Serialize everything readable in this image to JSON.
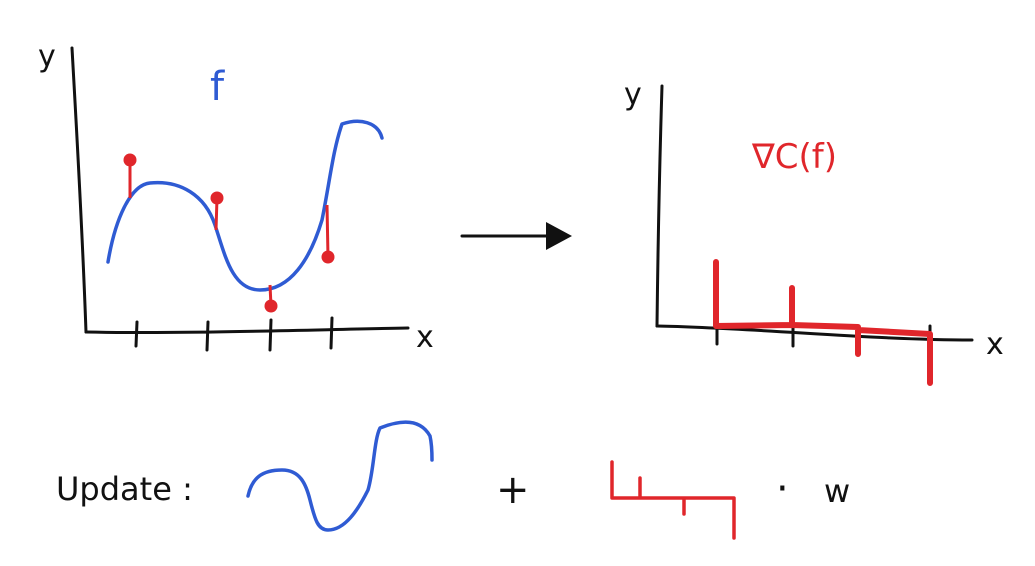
{
  "colors": {
    "ink": "#111111",
    "function": "#2f5bd3",
    "gradient": "#e0262b"
  },
  "left_plot": {
    "y_axis_label": "y",
    "x_axis_label": "x",
    "curve_label": "f"
  },
  "right_plot": {
    "y_axis_label": "y",
    "x_axis_label": "x",
    "gradient_label": "∇C(f)"
  },
  "update_row": {
    "label": "Update :",
    "plus": "+",
    "dot": "·",
    "weight": "w"
  }
}
